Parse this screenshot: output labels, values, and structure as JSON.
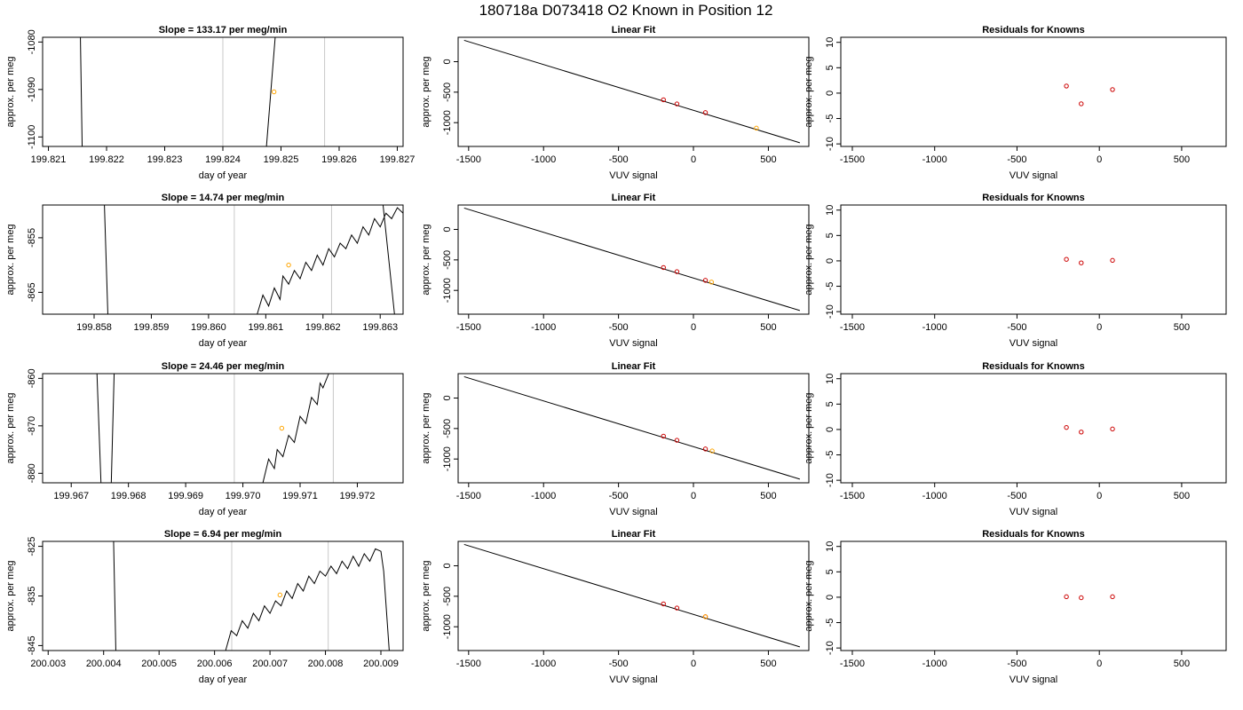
{
  "figure_title": "180718a     D073418   O2 Known in Position  12",
  "colors": {
    "trace": "#000000",
    "marker_unknown": "#ffa500",
    "marker_known": "#cc0000",
    "vline": "#c8c8c8",
    "fit_line": "#000000"
  },
  "chart_data": [
    {
      "type": "line",
      "panel": "time-series-row-1",
      "title": "Slope =  133.17  per meg/min",
      "xlabel": "day of year",
      "ylabel": "approx. per meg",
      "xlim": [
        199.8209,
        199.8271
      ],
      "ylim": [
        -1102,
        -1079
      ],
      "xticks": [
        "199.821",
        "199.822",
        "199.823",
        "199.824",
        "199.825",
        "199.826",
        "199.827"
      ],
      "yticks": [
        "-1080",
        "-1090",
        "-1100"
      ],
      "vlines": [
        199.824,
        199.82575
      ],
      "trace": [
        [
          199.82155,
          -1079
        ],
        [
          199.82158,
          -1102
        ],
        [
          null,
          null
        ],
        [
          199.82475,
          -1102
        ],
        [
          199.8249,
          -1079
        ]
      ],
      "marker": {
        "x": 199.82488,
        "y": -1090.5
      }
    },
    {
      "type": "scatter",
      "panel": "linear-fit-row-1",
      "title": "Linear Fit",
      "xlabel": "VUV signal",
      "ylabel": "approx. per meg",
      "xlim": [
        -1570,
        770
      ],
      "ylim": [
        -1390,
        400
      ],
      "xticks": [
        "-1500",
        "-1000",
        "-500",
        "0",
        "500"
      ],
      "yticks": [
        "0",
        "-500",
        "-1000"
      ],
      "fit_line": [
        [
          -1530,
          350
        ],
        [
          710,
          -1330
        ]
      ],
      "known_points": [
        [
          -200,
          -625
        ],
        [
          -110,
          -693
        ],
        [
          80,
          -835
        ]
      ],
      "unknown_point": [
        420,
        -1090
      ]
    },
    {
      "type": "scatter",
      "panel": "residuals-row-1",
      "title": "Residuals for Knowns",
      "xlabel": "VUV signal",
      "ylabel": "approx. per meg",
      "xlim": [
        -1570,
        770
      ],
      "ylim": [
        -10.5,
        11
      ],
      "xticks": [
        "-1500",
        "-1000",
        "-500",
        "0",
        "500"
      ],
      "yticks": [
        "10",
        "5",
        "0",
        "-5",
        "-10"
      ],
      "points": [
        [
          -200,
          1.4
        ],
        [
          -110,
          -2.1
        ],
        [
          80,
          0.7
        ]
      ]
    },
    {
      "type": "line",
      "panel": "time-series-row-2",
      "title": "Slope =  14.74  per meg/min",
      "xlabel": "day of year",
      "ylabel": "approx. per meg",
      "xlim": [
        199.8571,
        199.8634
      ],
      "ylim": [
        -869,
        -849
      ],
      "xticks": [
        "199.858",
        "199.859",
        "199.860",
        "199.861",
        "199.862",
        "199.863"
      ],
      "yticks": [
        "-855",
        "-865"
      ],
      "vlines": [
        199.86045,
        199.86215
      ],
      "trace": [
        [
          199.85818,
          -849
        ],
        [
          199.85824,
          -869
        ],
        [
          null,
          null
        ],
        [
          199.86085,
          -869
        ],
        [
          199.86095,
          -865.5
        ],
        [
          199.86105,
          -867.5
        ],
        [
          199.86115,
          -864.2
        ],
        [
          199.86125,
          -866.3
        ],
        [
          199.8613,
          -862
        ],
        [
          199.8614,
          -863.5
        ],
        [
          199.8615,
          -861
        ],
        [
          199.8616,
          -862.5
        ],
        [
          199.8617,
          -859.5
        ],
        [
          199.8618,
          -861
        ],
        [
          199.8619,
          -858.2
        ],
        [
          199.862,
          -860
        ],
        [
          199.8621,
          -857
        ],
        [
          199.8622,
          -858.5
        ],
        [
          199.8623,
          -856
        ],
        [
          199.8624,
          -857
        ],
        [
          199.8625,
          -854.5
        ],
        [
          199.8626,
          -856
        ],
        [
          199.8627,
          -853
        ],
        [
          199.8628,
          -854.5
        ],
        [
          199.8629,
          -851.5
        ],
        [
          199.863,
          -853
        ],
        [
          199.8631,
          -850.5
        ],
        [
          199.8632,
          -851.5
        ],
        [
          199.8633,
          -849.5
        ],
        [
          199.8634,
          -850.5
        ],
        [
          199.8635,
          -849
        ],
        [
          null,
          null
        ],
        [
          199.86305,
          -849
        ],
        [
          199.86325,
          -869
        ]
      ],
      "marker": {
        "x": 199.8614,
        "y": -860
      }
    },
    {
      "type": "scatter",
      "panel": "linear-fit-row-2",
      "title": "Linear Fit",
      "xlabel": "VUV signal",
      "ylabel": "approx. per meg",
      "xlim": [
        -1570,
        770
      ],
      "ylim": [
        -1390,
        400
      ],
      "xticks": [
        "-1500",
        "-1000",
        "-500",
        "0",
        "500"
      ],
      "yticks": [
        "0",
        "-500",
        "-1000"
      ],
      "fit_line": [
        [
          -1530,
          350
        ],
        [
          710,
          -1330
        ]
      ],
      "known_points": [
        [
          -200,
          -625
        ],
        [
          -110,
          -693
        ],
        [
          80,
          -835
        ]
      ],
      "unknown_point": [
        120,
        -863
      ]
    },
    {
      "type": "scatter",
      "panel": "residuals-row-2",
      "title": "Residuals for Knowns",
      "xlabel": "VUV signal",
      "ylabel": "approx. per meg",
      "xlim": [
        -1570,
        770
      ],
      "ylim": [
        -10.5,
        11
      ],
      "xticks": [
        "-1500",
        "-1000",
        "-500",
        "0",
        "500"
      ],
      "yticks": [
        "10",
        "5",
        "0",
        "-5",
        "-10"
      ],
      "points": [
        [
          -200,
          0.3
        ],
        [
          -110,
          -0.4
        ],
        [
          80,
          0.1
        ]
      ]
    },
    {
      "type": "line",
      "panel": "time-series-row-3",
      "title": "Slope =  24.46  per meg/min",
      "xlabel": "day of year",
      "ylabel": "approx. per meg",
      "xlim": [
        199.9665,
        199.9728
      ],
      "ylim": [
        -882,
        -859
      ],
      "xticks": [
        "199.967",
        "199.968",
        "199.969",
        "199.970",
        "199.971",
        "199.972"
      ],
      "yticks": [
        "-860",
        "-870",
        "-880"
      ],
      "vlines": [
        199.96985,
        199.97158
      ],
      "trace": [
        [
          199.96745,
          -859
        ],
        [
          199.96752,
          -882
        ],
        [
          null,
          null
        ],
        [
          199.9677,
          -882
        ],
        [
          199.96775,
          -859
        ],
        [
          null,
          null
        ],
        [
          199.97035,
          -882
        ],
        [
          199.97045,
          -877
        ],
        [
          199.97055,
          -879
        ],
        [
          199.9706,
          -875
        ],
        [
          199.9707,
          -876.5
        ],
        [
          199.9708,
          -872
        ],
        [
          199.9709,
          -873.5
        ],
        [
          199.971,
          -868
        ],
        [
          199.9711,
          -869.5
        ],
        [
          199.9712,
          -864
        ],
        [
          199.9713,
          -865.5
        ],
        [
          199.97135,
          -861
        ],
        [
          199.9714,
          -862
        ],
        [
          199.9715,
          -859
        ]
      ],
      "marker": {
        "x": 199.97068,
        "y": -870.5
      }
    },
    {
      "type": "scatter",
      "panel": "linear-fit-row-3",
      "title": "Linear Fit",
      "xlabel": "VUV signal",
      "ylabel": "approx. per meg",
      "xlim": [
        -1570,
        770
      ],
      "ylim": [
        -1390,
        400
      ],
      "xticks": [
        "-1500",
        "-1000",
        "-500",
        "0",
        "500"
      ],
      "yticks": [
        "0",
        "-500",
        "-1000"
      ],
      "fit_line": [
        [
          -1530,
          350
        ],
        [
          710,
          -1330
        ]
      ],
      "known_points": [
        [
          -200,
          -625
        ],
        [
          -110,
          -693
        ],
        [
          80,
          -835
        ]
      ],
      "unknown_point": [
        125,
        -868
      ]
    },
    {
      "type": "scatter",
      "panel": "residuals-row-3",
      "title": "Residuals for Knowns",
      "xlabel": "VUV signal",
      "ylabel": "approx. per meg",
      "xlim": [
        -1570,
        770
      ],
      "ylim": [
        -10.5,
        11
      ],
      "xticks": [
        "-1500",
        "-1000",
        "-500",
        "0",
        "500"
      ],
      "yticks": [
        "10",
        "5",
        "0",
        "-5",
        "-10"
      ],
      "points": [
        [
          -200,
          0.4
        ],
        [
          -110,
          -0.5
        ],
        [
          80,
          0.1
        ]
      ]
    },
    {
      "type": "line",
      "panel": "time-series-row-4",
      "title": "Slope =  6.94  per meg/min",
      "xlabel": "day of year",
      "ylabel": "approx. per meg",
      "xlim": [
        200.0029,
        200.0094
      ],
      "ylim": [
        -846,
        -824
      ],
      "xticks": [
        "200.003",
        "200.004",
        "200.005",
        "200.006",
        "200.007",
        "200.008",
        "200.009"
      ],
      "yticks": [
        "-825",
        "-835",
        "-845"
      ],
      "vlines": [
        200.00631,
        200.00805
      ],
      "trace": [
        [
          200.00418,
          -824
        ],
        [
          200.00422,
          -846
        ],
        [
          null,
          null
        ],
        [
          200.0062,
          -846
        ],
        [
          200.0063,
          -842
        ],
        [
          200.0064,
          -843
        ],
        [
          200.0065,
          -840
        ],
        [
          200.0066,
          -841.5
        ],
        [
          200.0067,
          -838.5
        ],
        [
          200.0068,
          -840
        ],
        [
          200.0069,
          -837
        ],
        [
          200.007,
          -838.5
        ],
        [
          200.0071,
          -836
        ],
        [
          200.0072,
          -837
        ],
        [
          200.0073,
          -834
        ],
        [
          200.0074,
          -835.5
        ],
        [
          200.0075,
          -832.5
        ],
        [
          200.0076,
          -834
        ],
        [
          200.0077,
          -831
        ],
        [
          200.0078,
          -832.5
        ],
        [
          200.0079,
          -830
        ],
        [
          200.008,
          -831
        ],
        [
          200.0081,
          -829
        ],
        [
          200.0082,
          -830.5
        ],
        [
          200.0083,
          -828
        ],
        [
          200.0084,
          -829.5
        ],
        [
          200.0085,
          -827
        ],
        [
          200.0086,
          -829
        ],
        [
          200.0087,
          -826.5
        ],
        [
          200.0088,
          -828
        ],
        [
          200.0089,
          -825.5
        ],
        [
          200.009,
          -826
        ],
        [
          200.00905,
          -830
        ],
        [
          200.0091,
          -838
        ],
        [
          200.00915,
          -846
        ]
      ],
      "marker": {
        "x": 200.00718,
        "y": -834.8
      }
    },
    {
      "type": "scatter",
      "panel": "linear-fit-row-4",
      "title": "Linear Fit",
      "xlabel": "VUV signal",
      "ylabel": "approx. per meg",
      "xlim": [
        -1570,
        770
      ],
      "ylim": [
        -1390,
        400
      ],
      "xticks": [
        "-1500",
        "-1000",
        "-500",
        "0",
        "500"
      ],
      "yticks": [
        "0",
        "-500",
        "-1000"
      ],
      "fit_line": [
        [
          -1530,
          350
        ],
        [
          710,
          -1330
        ]
      ],
      "known_points": [
        [
          -200,
          -625
        ],
        [
          -110,
          -693
        ],
        [
          80,
          -835
        ]
      ],
      "unknown_point": [
        80,
        -835
      ]
    },
    {
      "type": "scatter",
      "panel": "residuals-row-4",
      "title": "Residuals for Knowns",
      "xlabel": "VUV signal",
      "ylabel": "approx. per meg",
      "xlim": [
        -1570,
        770
      ],
      "ylim": [
        -10.5,
        11
      ],
      "xticks": [
        "-1500",
        "-1000",
        "-500",
        "0",
        "500"
      ],
      "yticks": [
        "10",
        "5",
        "0",
        "-5",
        "-10"
      ],
      "points": [
        [
          -200,
          0.1
        ],
        [
          -110,
          -0.1
        ],
        [
          80,
          0.1
        ]
      ]
    }
  ]
}
